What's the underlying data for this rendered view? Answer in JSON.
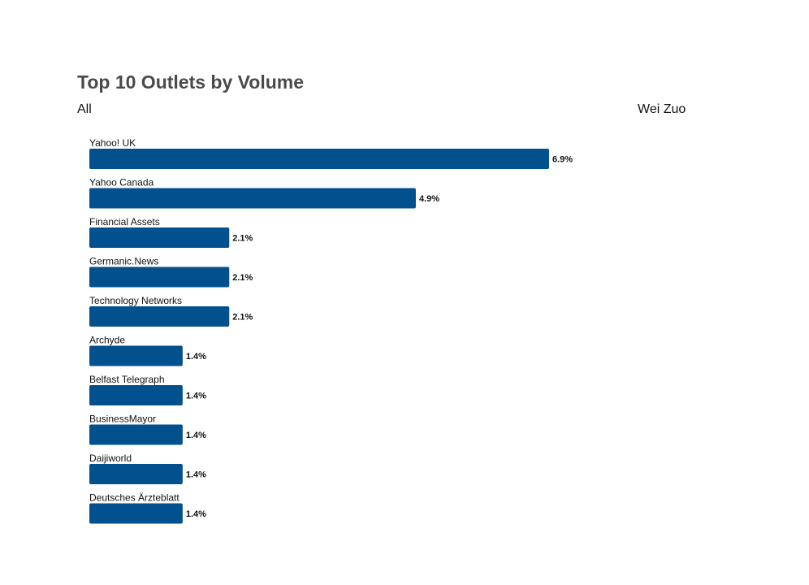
{
  "header": {
    "title": "Top 10 Outlets by Volume",
    "filter": "All",
    "author": "Wei Zuo"
  },
  "colors": {
    "bar": "#03508f"
  },
  "chart_data": {
    "type": "bar",
    "orientation": "horizontal",
    "title": "Top 10 Outlets by Volume",
    "categories": [
      "Yahoo! UK",
      "Yahoo Canada",
      "Financial Assets",
      "Germanic.News",
      "Technology Networks",
      "Archyde",
      "Belfast Telegraph",
      "BusinessMayor",
      "Daijiworld",
      "Deutsches Ärzteblatt"
    ],
    "values": [
      6.9,
      4.9,
      2.1,
      2.1,
      2.1,
      1.4,
      1.4,
      1.4,
      1.4,
      1.4
    ],
    "value_labels": [
      "6.9%",
      "4.9%",
      "2.1%",
      "2.1%",
      "2.1%",
      "1.4%",
      "1.4%",
      "1.4%",
      "1.4%",
      "1.4%"
    ],
    "unit": "%",
    "xlim": [
      0,
      6.9
    ],
    "grid": false,
    "legend": false
  }
}
